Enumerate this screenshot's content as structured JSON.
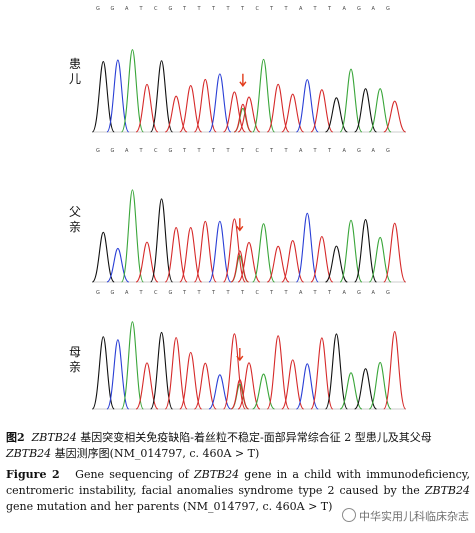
{
  "panels": [
    {
      "label": "患儿",
      "sequence": [
        "G",
        "G",
        "A",
        "T",
        "C",
        "G",
        "T",
        "T",
        "T",
        "T",
        "T",
        "C",
        "T",
        "T",
        "A",
        "T",
        "T",
        "A",
        "G",
        "A",
        "G"
      ],
      "positions": [
        "",
        "460"
      ],
      "mutation_at": 0.48
    },
    {
      "label": "父亲",
      "sequence": [
        "G",
        "G",
        "A",
        "T",
        "C",
        "G",
        "T",
        "T",
        "T",
        "T",
        "T",
        "C",
        "T",
        "T",
        "A",
        "T",
        "T",
        "A",
        "G",
        "A",
        "G"
      ],
      "positions": [
        "",
        "460"
      ],
      "mutation_at": 0.47
    },
    {
      "label": "母亲",
      "sequence": [],
      "positions": [],
      "mutation_at": 0.47
    }
  ],
  "caption_cn": {
    "fig_label": "图2",
    "text_before": "ZBTB24",
    "text_mid": " 基因突变相关免疫缺陷-着丝粒不稳定-面部异常综合征 2 型患儿及其父母 ",
    "gene": "ZBTB24",
    "text_after": " 基因测序图(NM_014797, c. 460A > T)"
  },
  "caption_en": {
    "fig_label": "Figure 2",
    "t1": "Gene sequencing of ",
    "gene1": "ZBTB24",
    "t2": " gene in a child with immunodeficiency, centromeric instability, facial anomalies syndrome type 2 caused by the ",
    "gene2": "ZBTB24",
    "t3": " gene mutation and her parents (NM_014797, c. 460A > T)"
  },
  "watermark": "中华实用儿科临床杂志",
  "colors": {
    "A": "#3aa63a",
    "C": "#2a3fd6",
    "G": "#111111",
    "T": "#d62a2a",
    "arrow": "#e23a1a"
  }
}
